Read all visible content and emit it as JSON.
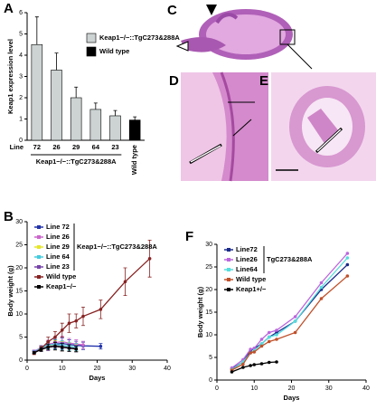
{
  "panel_labels": [
    "C",
    "D",
    "E"
  ],
  "chart_data": [
    {
      "type": "bar",
      "panel": "A",
      "ylabel": "Keap1 expression level",
      "xlabel": "Line",
      "x_group_label": "Keap1−/−::TgC273&288A",
      "categories": [
        "72",
        "26",
        "29",
        "64",
        "23",
        "Wild type"
      ],
      "ylim": [
        0,
        6
      ],
      "yticks": [
        0,
        1,
        2,
        3,
        4,
        5,
        6
      ],
      "series": [
        {
          "name": "Keap1−/−::TgC273&288A",
          "color": "#cdd3d3",
          "values": [
            4.5,
            3.3,
            2.0,
            1.45,
            1.15,
            null
          ],
          "errors": [
            1.3,
            0.8,
            0.5,
            0.3,
            0.25,
            null
          ]
        },
        {
          "name": "Wild type",
          "color": "#000000",
          "values": [
            null,
            null,
            null,
            null,
            null,
            0.95
          ],
          "errors": [
            null,
            null,
            null,
            null,
            null,
            0.15
          ]
        }
      ]
    },
    {
      "type": "line",
      "panel": "B",
      "ylabel": "Body weight (g)",
      "xlabel": "Days",
      "legend_group_label": "Keap1−/−::TgC273&288A",
      "xlim": [
        0,
        40
      ],
      "xticks": [
        0,
        10,
        20,
        30,
        40
      ],
      "ylim": [
        0,
        30
      ],
      "yticks": [
        0,
        5,
        10,
        15,
        20,
        25,
        30
      ],
      "series": [
        {
          "name": "Line 72",
          "color": "#2233aa",
          "x": [
            2,
            4,
            6,
            8,
            10,
            12,
            14,
            16,
            21
          ],
          "values": [
            1.8,
            2.6,
            3.2,
            3.5,
            3.6,
            3.4,
            3.2,
            3.1,
            3.0
          ],
          "errors": [
            0.3,
            0.5,
            0.8,
            1.0,
            1.2,
            1.0,
            0.9,
            0.8,
            0.6
          ]
        },
        {
          "name": "Line 26",
          "color": "#cc66cc",
          "x": [
            2,
            4,
            6,
            8,
            10,
            12,
            14,
            16
          ],
          "values": [
            1.9,
            2.7,
            3.4,
            3.8,
            4.0,
            3.7,
            3.5,
            3.3
          ],
          "errors": [
            0.3,
            0.5,
            0.9,
            1.1,
            1.2,
            1.0,
            0.9,
            0.8
          ]
        },
        {
          "name": "Line 29",
          "color": "#e6e62a",
          "x": [
            2,
            4,
            6,
            8,
            10,
            12,
            14
          ],
          "values": [
            1.7,
            2.5,
            3.0,
            3.2,
            3.0,
            2.9,
            2.7
          ],
          "errors": [
            0.3,
            0.5,
            0.8,
            1.0,
            1.0,
            0.9,
            0.8
          ]
        },
        {
          "name": "Line 64",
          "color": "#44ccdd",
          "x": [
            2,
            4,
            6,
            8,
            10,
            12,
            14
          ],
          "values": [
            1.8,
            2.6,
            3.3,
            3.4,
            3.2,
            3.0,
            2.8
          ],
          "errors": [
            0.3,
            0.5,
            0.8,
            1.0,
            1.0,
            0.9,
            0.8
          ]
        },
        {
          "name": "Line 23",
          "color": "#7744aa",
          "x": [
            2,
            4,
            6,
            8,
            10,
            12,
            14
          ],
          "values": [
            1.7,
            2.4,
            2.9,
            3.1,
            2.9,
            2.7,
            2.5
          ],
          "errors": [
            0.3,
            0.5,
            0.8,
            0.9,
            0.9,
            0.8,
            0.7
          ]
        },
        {
          "name": "Wild type",
          "color": "#882222",
          "x": [
            2,
            4,
            6,
            8,
            10,
            12,
            14,
            16,
            21,
            28,
            35
          ],
          "values": [
            1.5,
            2.5,
            4.0,
            5.0,
            6.5,
            8.0,
            8.5,
            9.5,
            11.0,
            17.0,
            22.0
          ],
          "errors": [
            0.3,
            0.5,
            1.0,
            1.2,
            1.5,
            2.0,
            1.5,
            2.0,
            2.0,
            3.0,
            4.0
          ]
        },
        {
          "name": "Keap1−/−",
          "color": "#000000",
          "x": [
            2,
            4,
            6,
            8,
            10,
            12,
            14
          ],
          "values": [
            1.6,
            2.3,
            2.8,
            3.0,
            2.8,
            2.6,
            2.4
          ],
          "errors": [
            0.2,
            0.4,
            0.6,
            0.8,
            0.8,
            0.7,
            0.6
          ]
        }
      ]
    },
    {
      "type": "line",
      "panel": "F",
      "ylabel": "Body weight (g)",
      "xlabel": "Days",
      "legend_group_label": "TgC273&288A",
      "xlim": [
        0,
        40
      ],
      "xticks": [
        0,
        10,
        20,
        30,
        40
      ],
      "ylim": [
        0,
        30
      ],
      "yticks": [
        0,
        5,
        10,
        15,
        20,
        25,
        30
      ],
      "series": [
        {
          "name": "Line72",
          "color": "#1a2a8a",
          "x": [
            4,
            7,
            9,
            10,
            12,
            14,
            16,
            21,
            28,
            35
          ],
          "values": [
            2.5,
            4.0,
            6.5,
            7.0,
            8.0,
            9.5,
            10.5,
            13.0,
            20.0,
            25.5
          ]
        },
        {
          "name": "Line26",
          "color": "#bb66dd",
          "x": [
            4,
            7,
            9,
            10,
            12,
            14,
            16,
            21,
            28,
            35
          ],
          "values": [
            2.7,
            4.5,
            6.8,
            7.0,
            9.0,
            10.5,
            11.0,
            14.0,
            21.5,
            28.0
          ]
        },
        {
          "name": "Line64",
          "color": "#55dddd",
          "x": [
            4,
            7,
            9,
            10,
            12,
            14,
            16,
            21,
            28,
            35
          ],
          "values": [
            2.3,
            4.0,
            6.0,
            6.5,
            8.0,
            9.5,
            10.0,
            13.0,
            20.5,
            27.0
          ]
        },
        {
          "name": "Wild type",
          "color": "#c0502a",
          "x": [
            4,
            7,
            9,
            10,
            12,
            14,
            16,
            21,
            28,
            35
          ],
          "values": [
            2.2,
            3.5,
            6.0,
            6.2,
            7.5,
            8.5,
            9.0,
            10.5,
            18.0,
            23.0
          ]
        },
        {
          "name": "Keap1+/−",
          "color": "#000000",
          "x": [
            4,
            7,
            9,
            10,
            12,
            14,
            16
          ],
          "values": [
            1.8,
            2.8,
            3.2,
            3.4,
            3.6,
            3.9,
            4.0
          ]
        }
      ]
    }
  ]
}
